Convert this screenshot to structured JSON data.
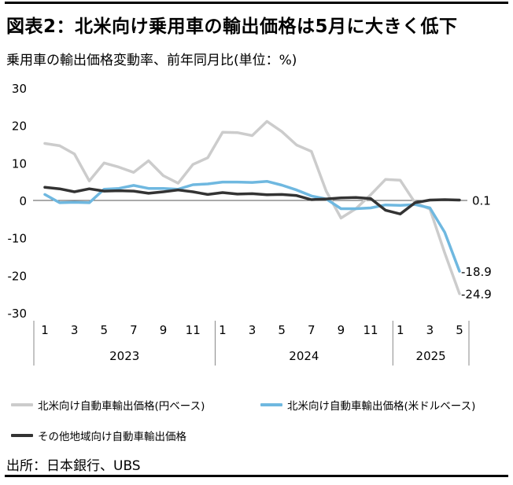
{
  "title": "図表2：北米向け乗用車の輸出価格は5月に大きく低下",
  "subtitle": "乗用車の輸出価格変動率、前年同月比(単位：%)",
  "source": "出所：日本銀行、UBS",
  "chart_data": {
    "type": "line",
    "ylim": [
      -30,
      30
    ],
    "yticks": [
      "30",
      "20",
      "10",
      "0",
      "-10",
      "-20",
      "-30"
    ],
    "ytick_values": [
      30,
      20,
      10,
      0,
      -10,
      -20,
      -30
    ],
    "month_ticks": [
      "1",
      "3",
      "5",
      "7",
      "9",
      "11",
      "1",
      "3",
      "5",
      "7",
      "9",
      "11",
      "1",
      "3",
      "5"
    ],
    "years": [
      "2023",
      "2024",
      "2025"
    ],
    "x": [
      "2023-01",
      "2023-02",
      "2023-03",
      "2023-04",
      "2023-05",
      "2023-06",
      "2023-07",
      "2023-08",
      "2023-09",
      "2023-10",
      "2023-11",
      "2023-12",
      "2024-01",
      "2024-02",
      "2024-03",
      "2024-04",
      "2024-05",
      "2024-06",
      "2024-07",
      "2024-08",
      "2024-09",
      "2024-10",
      "2024-11",
      "2024-12",
      "2025-01",
      "2025-02",
      "2025-03",
      "2025-04",
      "2025-05"
    ],
    "series": [
      {
        "name": "北米向け自動車輸出価格(円ベース)",
        "color": "#cccccc",
        "values": [
          15.2,
          14.6,
          12.4,
          5.2,
          10.0,
          8.9,
          7.5,
          10.6,
          6.6,
          4.6,
          9.6,
          11.4,
          18.2,
          18.1,
          17.3,
          21.1,
          18.4,
          14.8,
          13.1,
          2.5,
          -4.7,
          -2.2,
          1.5,
          5.6,
          5.4,
          -0.6,
          -2.3,
          -14.0,
          -24.9
        ]
      },
      {
        "name": "北米向け自動車輸出価格(米ドルベース)",
        "color": "#6fb8e0",
        "values": [
          1.6,
          -0.6,
          -0.5,
          -0.6,
          3.0,
          3.2,
          4.0,
          3.2,
          3.2,
          3.0,
          4.2,
          4.4,
          4.9,
          4.9,
          4.8,
          5.1,
          4.1,
          2.8,
          1.2,
          0.4,
          -2.2,
          -2.2,
          -2.0,
          -1.2,
          -1.3,
          -1.1,
          -2.0,
          -8.5,
          -18.9
        ]
      },
      {
        "name": "その他地域向け自動車輸出価格",
        "color": "#333333",
        "values": [
          3.5,
          3.1,
          2.3,
          3.1,
          2.5,
          2.6,
          2.5,
          1.9,
          2.3,
          2.8,
          2.3,
          1.6,
          2.1,
          1.7,
          1.8,
          1.5,
          1.6,
          1.3,
          0.2,
          0.4,
          0.7,
          0.8,
          0.5,
          -2.6,
          -3.6,
          -0.6,
          0.1,
          0.2,
          0.1
        ]
      }
    ],
    "end_labels": [
      "-24.9",
      "-18.9",
      "0.1"
    ],
    "grid": false,
    "legend_position": "bottom"
  }
}
